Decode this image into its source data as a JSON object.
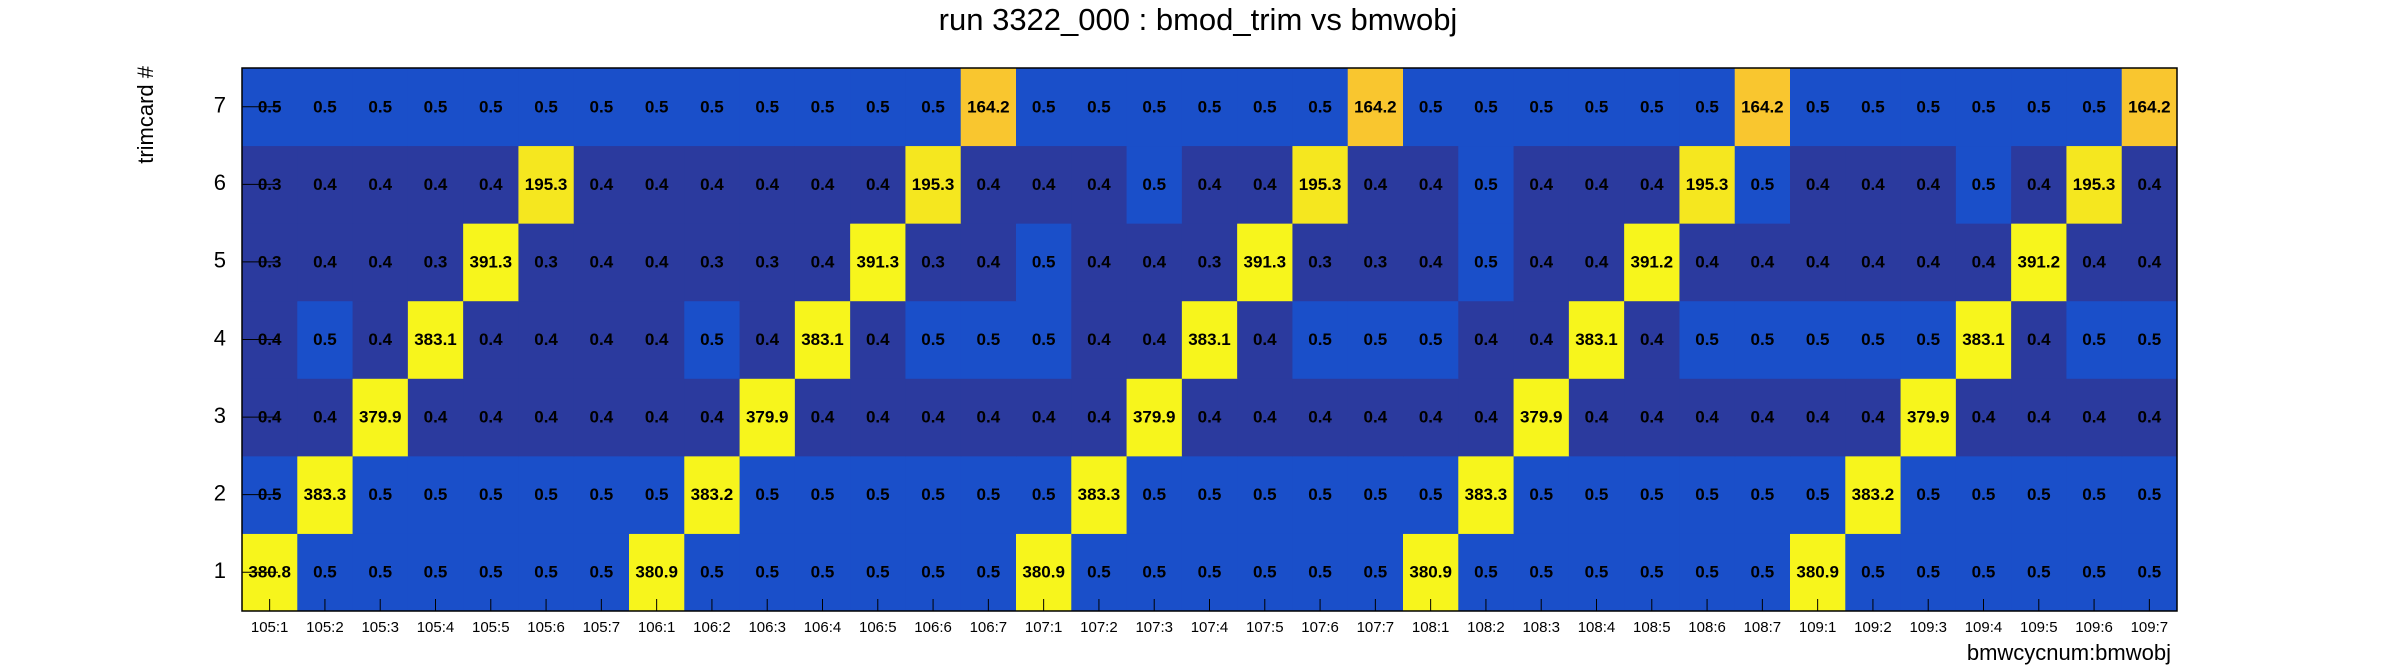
{
  "chart_data": {
    "type": "heatmap",
    "title": "run 3322_000 : bmod_trim vs bmwobj",
    "x_label": "bmwcycnum:bmwobj",
    "y_label": "trimcard #",
    "categories": [
      "105:1",
      "105:2",
      "105:3",
      "105:4",
      "105:5",
      "105:6",
      "105:7",
      "106:1",
      "106:2",
      "106:3",
      "106:4",
      "106:5",
      "106:6",
      "106:7",
      "107:1",
      "107:2",
      "107:3",
      "107:4",
      "107:5",
      "107:6",
      "107:7",
      "108:1",
      "108:2",
      "108:3",
      "108:4",
      "108:5",
      "108:6",
      "108:7",
      "109:1",
      "109:2",
      "109:3",
      "109:4",
      "109:5",
      "109:6",
      "109:7"
    ],
    "y_categories": [
      1,
      2,
      3,
      4,
      5,
      6,
      7
    ],
    "z": [
      [
        380.8,
        0.5,
        0.5,
        0.5,
        0.5,
        0.5,
        0.5,
        380.9,
        0.5,
        0.5,
        0.5,
        0.5,
        0.5,
        0.5,
        380.9,
        0.5,
        0.5,
        0.5,
        0.5,
        0.5,
        0.5,
        380.9,
        0.5,
        0.5,
        0.5,
        0.5,
        0.5,
        0.5,
        380.9,
        0.5,
        0.5,
        0.5,
        0.5,
        0.5,
        0.5
      ],
      [
        0.5,
        383.3,
        0.5,
        0.5,
        0.5,
        0.5,
        0.5,
        0.5,
        383.2,
        0.5,
        0.5,
        0.5,
        0.5,
        0.5,
        0.5,
        383.3,
        0.5,
        0.5,
        0.5,
        0.5,
        0.5,
        0.5,
        383.3,
        0.5,
        0.5,
        0.5,
        0.5,
        0.5,
        0.5,
        383.2,
        0.5,
        0.5,
        0.5,
        0.5,
        0.5
      ],
      [
        0.4,
        0.4,
        379.9,
        0.4,
        0.4,
        0.4,
        0.4,
        0.4,
        0.4,
        379.9,
        0.4,
        0.4,
        0.4,
        0.4,
        0.4,
        0.4,
        379.9,
        0.4,
        0.4,
        0.4,
        0.4,
        0.4,
        0.4,
        379.9,
        0.4,
        0.4,
        0.4,
        0.4,
        0.4,
        0.4,
        379.9,
        0.4,
        0.4,
        0.4,
        0.4
      ],
      [
        0.4,
        0.5,
        0.4,
        383.1,
        0.4,
        0.4,
        0.4,
        0.4,
        0.5,
        0.4,
        383.1,
        0.4,
        0.5,
        0.5,
        0.5,
        0.4,
        0.4,
        383.1,
        0.4,
        0.5,
        0.5,
        0.5,
        0.4,
        0.4,
        383.1,
        0.4,
        0.5,
        0.5,
        0.5,
        0.5,
        0.5,
        383.1,
        0.4,
        0.5,
        0.5
      ],
      [
        0.3,
        0.4,
        0.4,
        0.3,
        391.3,
        0.3,
        0.4,
        0.4,
        0.3,
        0.3,
        0.4,
        391.3,
        0.3,
        0.4,
        0.5,
        0.4,
        0.4,
        0.3,
        391.3,
        0.3,
        0.3,
        0.4,
        0.5,
        0.4,
        0.4,
        391.2,
        0.4,
        0.4,
        0.4,
        0.4,
        0.4,
        0.4,
        391.2,
        0.4,
        0.4
      ],
      [
        0.3,
        0.4,
        0.4,
        0.4,
        0.4,
        195.3,
        0.4,
        0.4,
        0.4,
        0.4,
        0.4,
        0.4,
        195.3,
        0.4,
        0.4,
        0.4,
        0.5,
        0.4,
        0.4,
        195.3,
        0.4,
        0.4,
        0.5,
        0.4,
        0.4,
        0.4,
        195.3,
        0.5,
        0.4,
        0.4,
        0.4,
        0.5,
        0.4,
        195.3,
        0.4
      ],
      [
        0.5,
        0.5,
        0.5,
        0.5,
        0.5,
        0.5,
        0.5,
        0.5,
        0.5,
        0.5,
        0.5,
        0.5,
        0.5,
        164.2,
        0.5,
        0.5,
        0.5,
        0.5,
        0.5,
        0.5,
        164.2,
        0.5,
        0.5,
        0.5,
        0.5,
        0.5,
        0.5,
        164.2,
        0.5,
        0.5,
        0.5,
        0.5,
        0.5,
        0.5,
        164.2
      ]
    ],
    "zlog": true,
    "colorscale": [
      "#2b3a9e",
      "#1a4fc9",
      "#1a5fd0",
      "#1770d4",
      "#1282d2",
      "#0f92c8",
      "#14a0b8",
      "#27aca2",
      "#42b68a",
      "#60bd72",
      "#80c05c",
      "#9fc248",
      "#bbc23a",
      "#d2c131",
      "#e3c02d",
      "#efbf2c",
      "#f6c02d",
      "#f9c62f",
      "#f5e71f",
      "#f7f51c"
    ]
  }
}
